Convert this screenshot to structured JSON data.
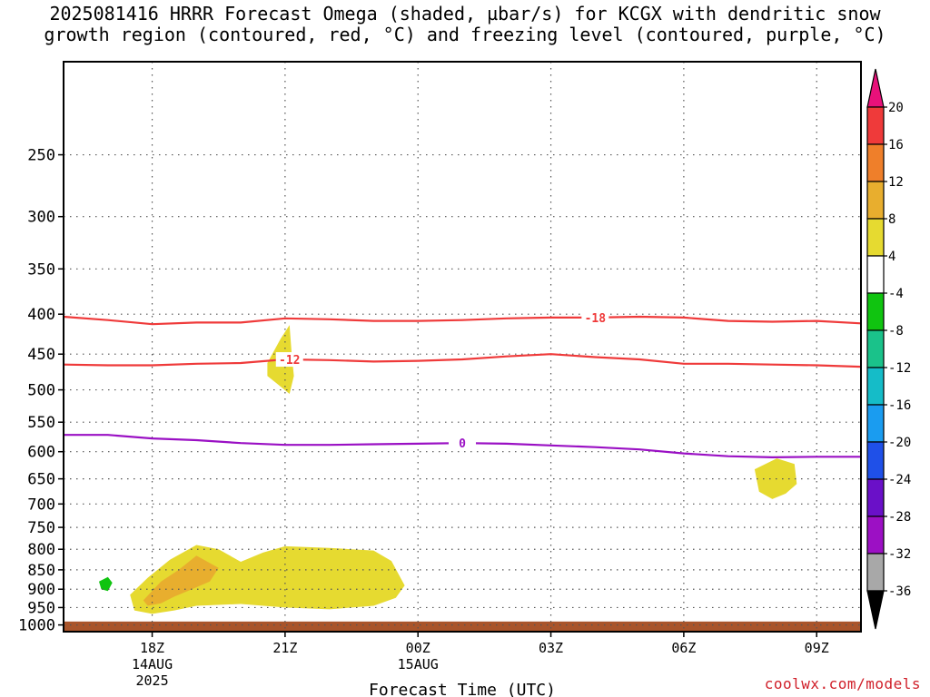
{
  "title_line1": "2025081416 HRRR Forecast Omega (shaded, µbar/s) for KCGX with dendritic snow",
  "title_line2": "growth region (contoured, red, °C) and freezing level (contoured, purple, °C)",
  "credit": "coolwx.com/models",
  "chart_data": {
    "type": "time-height cross section",
    "title": "2025081416 HRRR Forecast Omega (shaded, µbar/s) for KCGX with dendritic snow growth region (contoured, red, °C) and freezing level (contoured, purple, °C)",
    "xlabel": "Forecast Time (UTC)",
    "ylabel": "",
    "x_hours_range": [
      16,
      34
    ],
    "x_ticks": [
      {
        "hour": 18,
        "label": "18Z",
        "sub1": "14AUG",
        "sub2": "2025"
      },
      {
        "hour": 21,
        "label": "21Z",
        "sub1": "",
        "sub2": ""
      },
      {
        "hour": 24,
        "label": "00Z",
        "sub1": "15AUG",
        "sub2": ""
      },
      {
        "hour": 27,
        "label": "03Z",
        "sub1": "",
        "sub2": ""
      },
      {
        "hour": 30,
        "label": "06Z",
        "sub1": "",
        "sub2": ""
      },
      {
        "hour": 33,
        "label": "09Z",
        "sub1": "",
        "sub2": ""
      }
    ],
    "y_pressure_range_hPa": [
      190,
      1020
    ],
    "y_ticks": [
      250,
      300,
      350,
      400,
      450,
      500,
      550,
      600,
      650,
      700,
      750,
      800,
      850,
      900,
      950,
      1000
    ],
    "grid": true,
    "colorbar": {
      "labels": [
        "20",
        "16",
        "12",
        "8",
        "4",
        "-4",
        "-8",
        "-12",
        "-16",
        "-20",
        "-24",
        "-28",
        "-32",
        "-36"
      ],
      "colors": [
        "#e8117a",
        "#ef3a3a",
        "#ef7f2a",
        "#e8ae2e",
        "#e6da30",
        "#ffffff",
        "#10c410",
        "#1ac28a",
        "#15bcc8",
        "#1a9cf0",
        "#1f50e8",
        "#6a10c8",
        "#9c10c4",
        "#a8a8a8",
        "#000000"
      ]
    },
    "contours": [
      {
        "name": "-18",
        "color": "#ef3a3a",
        "label_hour": 28.0,
        "points": [
          [
            16.0,
            403
          ],
          [
            17.0,
            407
          ],
          [
            18.0,
            412
          ],
          [
            19.0,
            410
          ],
          [
            20.0,
            410
          ],
          [
            21.0,
            405
          ],
          [
            22.0,
            406
          ],
          [
            23.0,
            408
          ],
          [
            24.0,
            408
          ],
          [
            25.0,
            407
          ],
          [
            26.0,
            405
          ],
          [
            27.0,
            404
          ],
          [
            28.0,
            404
          ],
          [
            29.0,
            403
          ],
          [
            30.0,
            404
          ],
          [
            31.0,
            408
          ],
          [
            32.0,
            409
          ],
          [
            33.0,
            408
          ],
          [
            34.0,
            411
          ]
        ]
      },
      {
        "name": "-12",
        "color": "#ef3a3a",
        "label_hour": 21.1,
        "points": [
          [
            16.0,
            464
          ],
          [
            17.0,
            465
          ],
          [
            18.0,
            465
          ],
          [
            19.0,
            463
          ],
          [
            20.0,
            462
          ],
          [
            21.0,
            457
          ],
          [
            22.0,
            458
          ],
          [
            23.0,
            460
          ],
          [
            24.0,
            459
          ],
          [
            25.0,
            457
          ],
          [
            26.0,
            453
          ],
          [
            27.0,
            450
          ],
          [
            28.0,
            454
          ],
          [
            29.0,
            457
          ],
          [
            30.0,
            463
          ],
          [
            31.0,
            463
          ],
          [
            32.0,
            464
          ],
          [
            33.0,
            465
          ],
          [
            34.0,
            467
          ]
        ]
      },
      {
        "name": "0",
        "color": "#9a10c4",
        "label_hour": 25.0,
        "points": [
          [
            16.0,
            571
          ],
          [
            17.0,
            571
          ],
          [
            18.0,
            577
          ],
          [
            19.0,
            580
          ],
          [
            20.0,
            585
          ],
          [
            21.0,
            588
          ],
          [
            22.0,
            588
          ],
          [
            23.0,
            587
          ],
          [
            24.0,
            586
          ],
          [
            25.0,
            585
          ],
          [
            26.0,
            586
          ],
          [
            27.0,
            589
          ],
          [
            28.0,
            592
          ],
          [
            29.0,
            596
          ],
          [
            30.0,
            603
          ],
          [
            31.0,
            608
          ],
          [
            32.0,
            610
          ],
          [
            33.0,
            609
          ],
          [
            34.0,
            609
          ]
        ]
      }
    ],
    "omega_areas": [
      {
        "value_bin": "4 to 8",
        "color": "#e6da30",
        "points": [
          [
            20.6,
            462
          ],
          [
            20.9,
            430
          ],
          [
            21.1,
            413
          ],
          [
            21.15,
            450
          ],
          [
            21.2,
            480
          ],
          [
            21.1,
            506
          ],
          [
            20.8,
            490
          ],
          [
            20.6,
            480
          ]
        ]
      },
      {
        "value_bin": "4 to 8",
        "color": "#e6da30",
        "points": [
          [
            31.6,
            632
          ],
          [
            32.1,
            612
          ],
          [
            32.5,
            622
          ],
          [
            32.55,
            660
          ],
          [
            32.3,
            679
          ],
          [
            32.0,
            690
          ],
          [
            31.7,
            675
          ]
        ]
      },
      {
        "value_bin": "4 to 8",
        "color": "#e6da30",
        "points": [
          [
            17.5,
            915
          ],
          [
            17.9,
            870
          ],
          [
            18.4,
            825
          ],
          [
            19.0,
            790
          ],
          [
            19.5,
            800
          ],
          [
            20.0,
            830
          ],
          [
            20.5,
            808
          ],
          [
            21.0,
            793
          ],
          [
            22.0,
            797
          ],
          [
            23.0,
            803
          ],
          [
            23.4,
            828
          ],
          [
            23.7,
            890
          ],
          [
            23.5,
            923
          ],
          [
            23.0,
            945
          ],
          [
            22.0,
            955
          ],
          [
            21.0,
            950
          ],
          [
            20.0,
            940
          ],
          [
            19.0,
            945
          ],
          [
            18.5,
            958
          ],
          [
            18.0,
            968
          ],
          [
            17.6,
            958
          ]
        ]
      },
      {
        "value_bin": "8 to 12",
        "color": "#e8ae2e",
        "points": [
          [
            17.8,
            930
          ],
          [
            18.2,
            880
          ],
          [
            18.6,
            850
          ],
          [
            19.0,
            815
          ],
          [
            19.5,
            845
          ],
          [
            19.3,
            880
          ],
          [
            18.8,
            905
          ],
          [
            18.5,
            920
          ],
          [
            18.2,
            938
          ],
          [
            17.9,
            945
          ]
        ]
      },
      {
        "value_bin": "-8 to -4",
        "color": "#10c410",
        "points": [
          [
            16.8,
            880
          ],
          [
            17.0,
            868
          ],
          [
            17.1,
            883
          ],
          [
            17.0,
            905
          ],
          [
            16.85,
            900
          ]
        ]
      }
    ],
    "terrain_color": "#a9542a"
  }
}
